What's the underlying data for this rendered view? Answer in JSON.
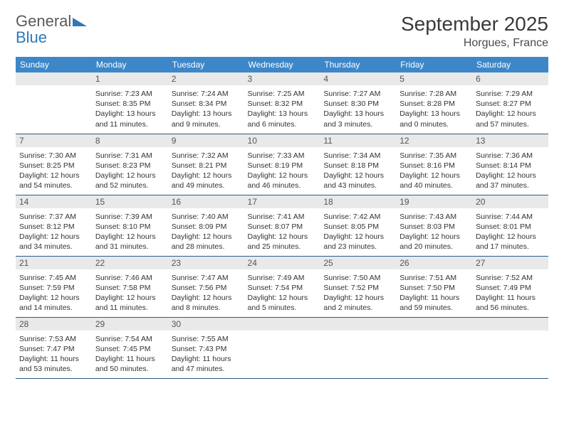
{
  "brand": {
    "text_general": "General",
    "text_blue": "Blue",
    "triangle_color": "#2f78b7"
  },
  "header": {
    "month_title": "September 2025",
    "location": "Horgues, France"
  },
  "style": {
    "header_bg": "#3d87c9",
    "header_text": "#ffffff",
    "daynum_bg": "#e9e9e9",
    "row_border": "#2b5c86",
    "body_text": "#333333",
    "font_size_header": 12,
    "font_size_daynum": 12,
    "font_size_info": 10.5,
    "title_fontsize": 28,
    "location_fontsize": 16
  },
  "weekdays": [
    "Sunday",
    "Monday",
    "Tuesday",
    "Wednesday",
    "Thursday",
    "Friday",
    "Saturday"
  ],
  "weeks": [
    [
      {
        "blank": true
      },
      {
        "day": "1",
        "sunrise": "Sunrise: 7:23 AM",
        "sunset": "Sunset: 8:35 PM",
        "day1": "Daylight: 13 hours",
        "day2": "and 11 minutes."
      },
      {
        "day": "2",
        "sunrise": "Sunrise: 7:24 AM",
        "sunset": "Sunset: 8:34 PM",
        "day1": "Daylight: 13 hours",
        "day2": "and 9 minutes."
      },
      {
        "day": "3",
        "sunrise": "Sunrise: 7:25 AM",
        "sunset": "Sunset: 8:32 PM",
        "day1": "Daylight: 13 hours",
        "day2": "and 6 minutes."
      },
      {
        "day": "4",
        "sunrise": "Sunrise: 7:27 AM",
        "sunset": "Sunset: 8:30 PM",
        "day1": "Daylight: 13 hours",
        "day2": "and 3 minutes."
      },
      {
        "day": "5",
        "sunrise": "Sunrise: 7:28 AM",
        "sunset": "Sunset: 8:28 PM",
        "day1": "Daylight: 13 hours",
        "day2": "and 0 minutes."
      },
      {
        "day": "6",
        "sunrise": "Sunrise: 7:29 AM",
        "sunset": "Sunset: 8:27 PM",
        "day1": "Daylight: 12 hours",
        "day2": "and 57 minutes."
      }
    ],
    [
      {
        "day": "7",
        "sunrise": "Sunrise: 7:30 AM",
        "sunset": "Sunset: 8:25 PM",
        "day1": "Daylight: 12 hours",
        "day2": "and 54 minutes."
      },
      {
        "day": "8",
        "sunrise": "Sunrise: 7:31 AM",
        "sunset": "Sunset: 8:23 PM",
        "day1": "Daylight: 12 hours",
        "day2": "and 52 minutes."
      },
      {
        "day": "9",
        "sunrise": "Sunrise: 7:32 AM",
        "sunset": "Sunset: 8:21 PM",
        "day1": "Daylight: 12 hours",
        "day2": "and 49 minutes."
      },
      {
        "day": "10",
        "sunrise": "Sunrise: 7:33 AM",
        "sunset": "Sunset: 8:19 PM",
        "day1": "Daylight: 12 hours",
        "day2": "and 46 minutes."
      },
      {
        "day": "11",
        "sunrise": "Sunrise: 7:34 AM",
        "sunset": "Sunset: 8:18 PM",
        "day1": "Daylight: 12 hours",
        "day2": "and 43 minutes."
      },
      {
        "day": "12",
        "sunrise": "Sunrise: 7:35 AM",
        "sunset": "Sunset: 8:16 PM",
        "day1": "Daylight: 12 hours",
        "day2": "and 40 minutes."
      },
      {
        "day": "13",
        "sunrise": "Sunrise: 7:36 AM",
        "sunset": "Sunset: 8:14 PM",
        "day1": "Daylight: 12 hours",
        "day2": "and 37 minutes."
      }
    ],
    [
      {
        "day": "14",
        "sunrise": "Sunrise: 7:37 AM",
        "sunset": "Sunset: 8:12 PM",
        "day1": "Daylight: 12 hours",
        "day2": "and 34 minutes."
      },
      {
        "day": "15",
        "sunrise": "Sunrise: 7:39 AM",
        "sunset": "Sunset: 8:10 PM",
        "day1": "Daylight: 12 hours",
        "day2": "and 31 minutes."
      },
      {
        "day": "16",
        "sunrise": "Sunrise: 7:40 AM",
        "sunset": "Sunset: 8:09 PM",
        "day1": "Daylight: 12 hours",
        "day2": "and 28 minutes."
      },
      {
        "day": "17",
        "sunrise": "Sunrise: 7:41 AM",
        "sunset": "Sunset: 8:07 PM",
        "day1": "Daylight: 12 hours",
        "day2": "and 25 minutes."
      },
      {
        "day": "18",
        "sunrise": "Sunrise: 7:42 AM",
        "sunset": "Sunset: 8:05 PM",
        "day1": "Daylight: 12 hours",
        "day2": "and 23 minutes."
      },
      {
        "day": "19",
        "sunrise": "Sunrise: 7:43 AM",
        "sunset": "Sunset: 8:03 PM",
        "day1": "Daylight: 12 hours",
        "day2": "and 20 minutes."
      },
      {
        "day": "20",
        "sunrise": "Sunrise: 7:44 AM",
        "sunset": "Sunset: 8:01 PM",
        "day1": "Daylight: 12 hours",
        "day2": "and 17 minutes."
      }
    ],
    [
      {
        "day": "21",
        "sunrise": "Sunrise: 7:45 AM",
        "sunset": "Sunset: 7:59 PM",
        "day1": "Daylight: 12 hours",
        "day2": "and 14 minutes."
      },
      {
        "day": "22",
        "sunrise": "Sunrise: 7:46 AM",
        "sunset": "Sunset: 7:58 PM",
        "day1": "Daylight: 12 hours",
        "day2": "and 11 minutes."
      },
      {
        "day": "23",
        "sunrise": "Sunrise: 7:47 AM",
        "sunset": "Sunset: 7:56 PM",
        "day1": "Daylight: 12 hours",
        "day2": "and 8 minutes."
      },
      {
        "day": "24",
        "sunrise": "Sunrise: 7:49 AM",
        "sunset": "Sunset: 7:54 PM",
        "day1": "Daylight: 12 hours",
        "day2": "and 5 minutes."
      },
      {
        "day": "25",
        "sunrise": "Sunrise: 7:50 AM",
        "sunset": "Sunset: 7:52 PM",
        "day1": "Daylight: 12 hours",
        "day2": "and 2 minutes."
      },
      {
        "day": "26",
        "sunrise": "Sunrise: 7:51 AM",
        "sunset": "Sunset: 7:50 PM",
        "day1": "Daylight: 11 hours",
        "day2": "and 59 minutes."
      },
      {
        "day": "27",
        "sunrise": "Sunrise: 7:52 AM",
        "sunset": "Sunset: 7:49 PM",
        "day1": "Daylight: 11 hours",
        "day2": "and 56 minutes."
      }
    ],
    [
      {
        "day": "28",
        "sunrise": "Sunrise: 7:53 AM",
        "sunset": "Sunset: 7:47 PM",
        "day1": "Daylight: 11 hours",
        "day2": "and 53 minutes."
      },
      {
        "day": "29",
        "sunrise": "Sunrise: 7:54 AM",
        "sunset": "Sunset: 7:45 PM",
        "day1": "Daylight: 11 hours",
        "day2": "and 50 minutes."
      },
      {
        "day": "30",
        "sunrise": "Sunrise: 7:55 AM",
        "sunset": "Sunset: 7:43 PM",
        "day1": "Daylight: 11 hours",
        "day2": "and 47 minutes."
      },
      {
        "blank": true
      },
      {
        "blank": true
      },
      {
        "blank": true
      },
      {
        "blank": true
      }
    ]
  ]
}
